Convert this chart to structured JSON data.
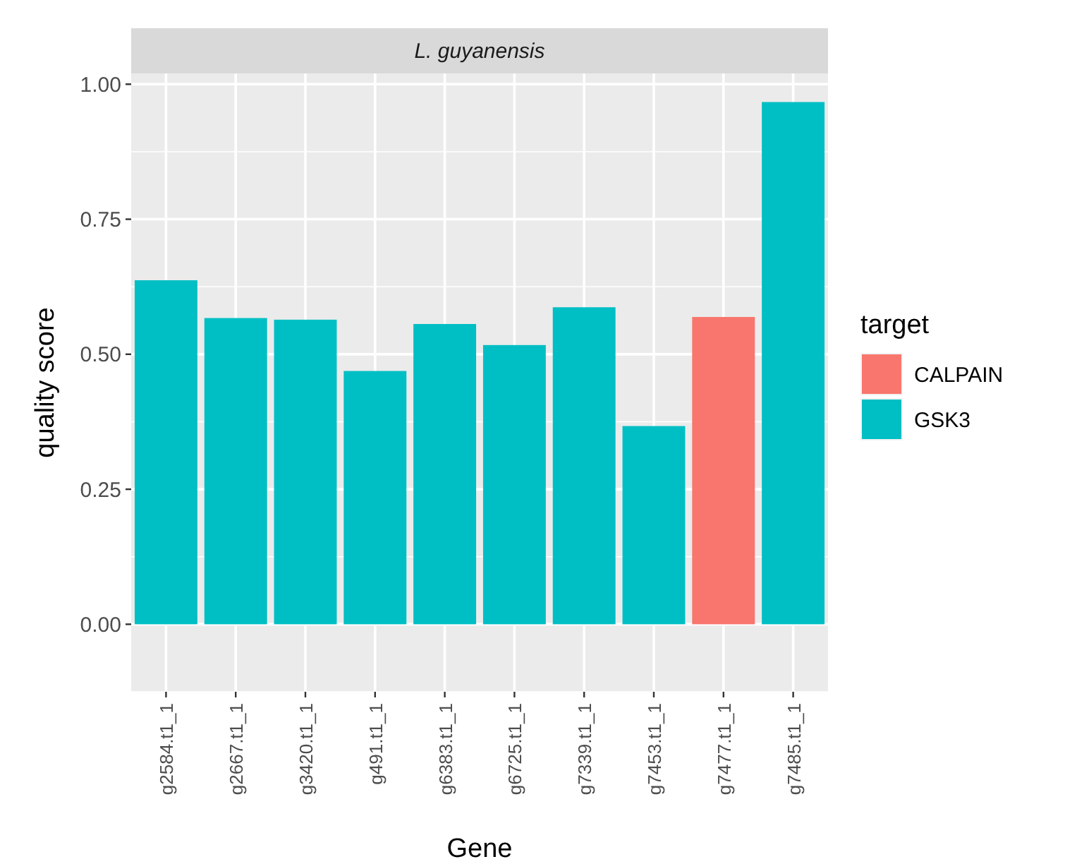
{
  "chart_data": {
    "type": "bar",
    "title": "L. guyanensis",
    "xlabel": "Gene",
    "ylabel": "quality score",
    "legend_title": "target",
    "categories": [
      "g2584.t1_1",
      "g2667.t1_1",
      "g3420.t1_1",
      "g491.t1_1",
      "g6383.t1_1",
      "g6725.t1_1",
      "g7339.t1_1",
      "g7453.t1_1",
      "g7477.t1_1",
      "g7485.t1_1"
    ],
    "series": [
      {
        "name": "CALPAIN",
        "color": "#f8766d",
        "values": [
          null,
          null,
          null,
          null,
          null,
          null,
          null,
          null,
          0.569,
          null
        ]
      },
      {
        "name": "GSK3",
        "color": "#00bfc4",
        "values": [
          0.637,
          0.567,
          0.564,
          0.469,
          0.556,
          0.517,
          0.587,
          0.367,
          null,
          0.967
        ]
      }
    ],
    "ylim": [
      -0.125,
      1.02
    ],
    "yticks": [
      {
        "value": 0,
        "label": "0.00"
      },
      {
        "value": 0.25,
        "label": "0.25"
      },
      {
        "value": 0.5,
        "label": "0.50"
      },
      {
        "value": 0.75,
        "label": "0.75"
      },
      {
        "value": 1,
        "label": "1.00"
      }
    ],
    "grid": true,
    "legend": "right"
  }
}
